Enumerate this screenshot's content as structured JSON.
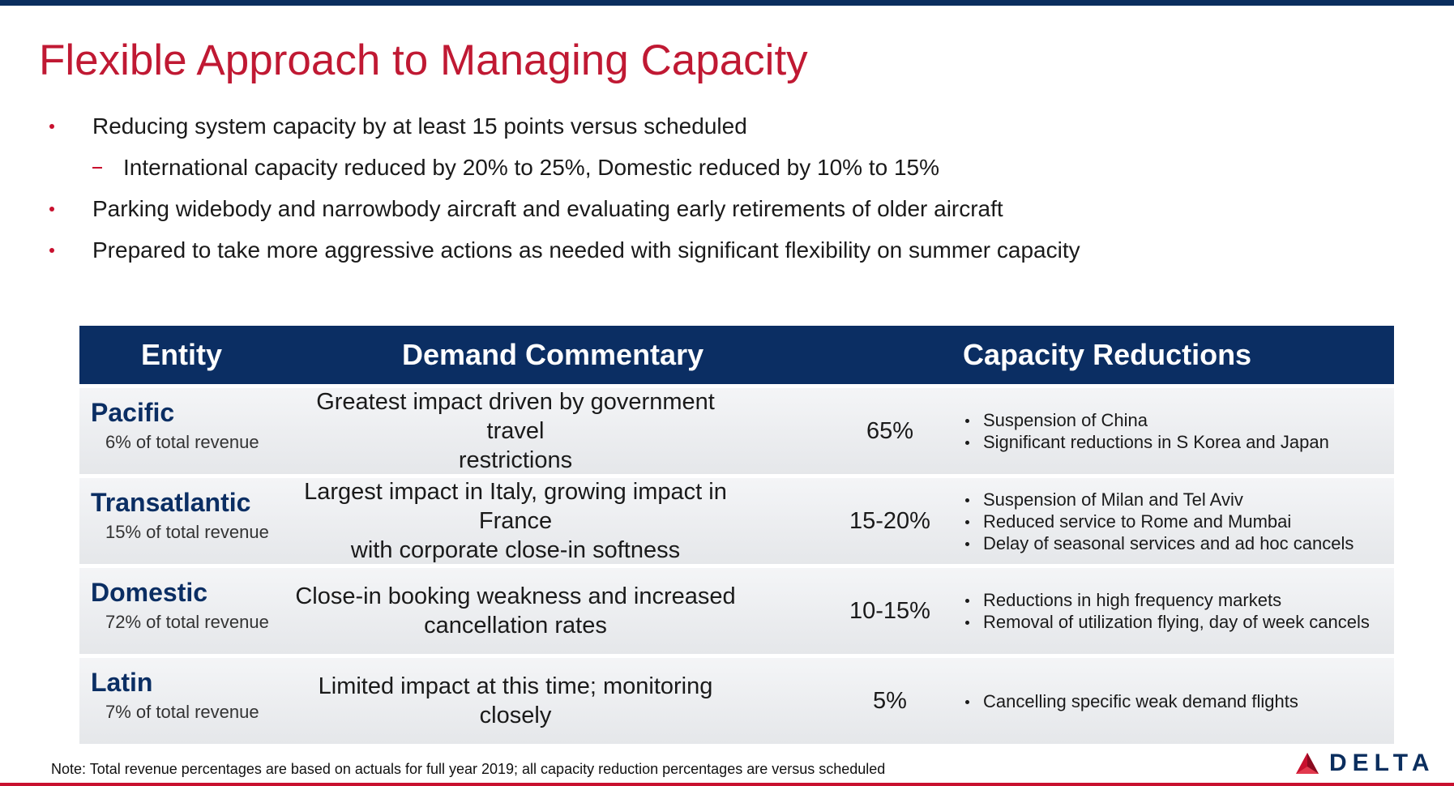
{
  "slide": {
    "title": "Flexible Approach to Managing Capacity",
    "bullets": [
      {
        "level": 1,
        "text": "Reducing system capacity by at least 15 points versus scheduled"
      },
      {
        "level": 2,
        "text": "International capacity reduced by 20% to 25%, Domestic reduced by 10% to 15%"
      },
      {
        "level": 1,
        "text": "Parking widebody and narrowbody aircraft and evaluating early retirements of older aircraft"
      },
      {
        "level": 1,
        "text": "Prepared to take more aggressive actions as needed with significant flexibility on summer capacity"
      }
    ],
    "colors": {
      "title": "#c01933",
      "header_bg": "#0b2e63",
      "accent": "#c8102e"
    }
  },
  "table": {
    "headers": [
      "Entity",
      "Demand Commentary",
      "Capacity Reductions"
    ],
    "rows": [
      {
        "entity": "Pacific",
        "share": "6% of total revenue",
        "commentary_lines": [
          "Greatest impact driven by government travel",
          "restrictions"
        ],
        "pct": "65%",
        "reductions": [
          "Suspension of China",
          "Significant reductions in S Korea and Japan"
        ]
      },
      {
        "entity": "Transatlantic",
        "share": "15% of total revenue",
        "commentary_lines": [
          "Largest impact in Italy, growing impact in France",
          "with corporate close-in softness"
        ],
        "pct": "15-20%",
        "reductions": [
          "Suspension of Milan and Tel Aviv",
          "Reduced service to Rome and Mumbai",
          "Delay of seasonal services and ad hoc cancels"
        ]
      },
      {
        "entity": "Domestic",
        "share": "72% of total revenue",
        "commentary_lines": [
          "Close-in booking weakness and increased",
          "cancellation rates"
        ],
        "pct": "10-15%",
        "reductions": [
          "Reductions in high frequency markets",
          "Removal of utilization flying, day of week cancels"
        ]
      },
      {
        "entity": "Latin",
        "share": "7% of total revenue",
        "commentary_lines": [
          "Limited impact at this time; monitoring closely"
        ],
        "pct": "5%",
        "reductions": [
          "Cancelling specific weak demand flights"
        ]
      }
    ]
  },
  "footer": {
    "note": "Note: Total revenue percentages are based on actuals for full year 2019; all capacity reduction percentages are versus scheduled",
    "logo_text": "DELTA",
    "logo_icon": "delta-widget-icon"
  }
}
